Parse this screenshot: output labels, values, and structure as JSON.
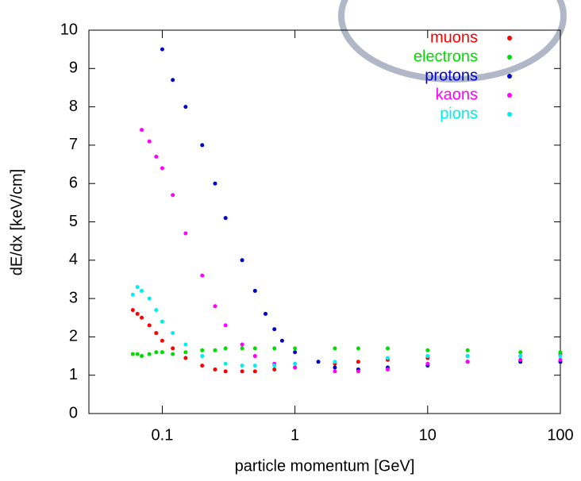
{
  "chart_data": {
    "type": "scatter",
    "xlabel": "particle momentum [GeV]",
    "ylabel": "dE/dx [keV/cm]",
    "log_x": true,
    "xlim": [
      0.028,
      100
    ],
    "xticks": [
      0.1,
      1,
      10,
      100
    ],
    "ylim": [
      0,
      10
    ],
    "yticks": [
      0,
      1,
      2,
      3,
      4,
      5,
      6,
      7,
      8,
      9,
      10
    ],
    "legend": "upper right",
    "series": [
      {
        "name": "muons",
        "color": "#ff0000",
        "x": [
          0.06,
          0.065,
          0.07,
          0.08,
          0.09,
          0.1,
          0.12,
          0.15,
          0.2,
          0.25,
          0.3,
          0.4,
          0.5,
          0.7,
          1,
          2,
          3,
          5,
          10,
          20,
          50,
          100
        ],
        "values": [
          2.7,
          2.6,
          2.5,
          2.3,
          2.1,
          1.9,
          1.7,
          1.45,
          1.25,
          1.15,
          1.1,
          1.1,
          1.1,
          1.15,
          1.2,
          1.3,
          1.35,
          1.4,
          1.45,
          1.5,
          1.5,
          1.55
        ]
      },
      {
        "name": "electrons",
        "color": "#00dd00",
        "x": [
          0.06,
          0.065,
          0.07,
          0.08,
          0.09,
          0.1,
          0.12,
          0.15,
          0.2,
          0.25,
          0.3,
          0.4,
          0.5,
          0.7,
          1,
          2,
          3,
          5,
          10,
          20,
          50,
          100
        ],
        "values": [
          1.55,
          1.55,
          1.5,
          1.55,
          1.6,
          1.6,
          1.55,
          1.6,
          1.65,
          1.65,
          1.7,
          1.7,
          1.7,
          1.7,
          1.7,
          1.7,
          1.7,
          1.7,
          1.65,
          1.65,
          1.6,
          1.6
        ]
      },
      {
        "name": "protons",
        "color": "#0000cc",
        "x": [
          0.1,
          0.12,
          0.15,
          0.2,
          0.25,
          0.3,
          0.4,
          0.5,
          0.6,
          0.7,
          0.8,
          1,
          1.5,
          2,
          3,
          5,
          10,
          20,
          50,
          100
        ],
        "values": [
          9.5,
          8.7,
          8.0,
          7.0,
          6.0,
          5.1,
          4.0,
          3.2,
          2.6,
          2.2,
          1.9,
          1.6,
          1.35,
          1.2,
          1.15,
          1.2,
          1.25,
          1.35,
          1.35,
          1.35
        ]
      },
      {
        "name": "kaons",
        "color": "#ff00ff",
        "x": [
          0.07,
          0.08,
          0.09,
          0.1,
          0.12,
          0.15,
          0.2,
          0.25,
          0.3,
          0.4,
          0.5,
          0.7,
          1,
          2,
          3,
          5,
          10,
          20,
          50,
          100
        ],
        "values": [
          7.4,
          7.1,
          6.7,
          6.4,
          5.7,
          4.7,
          3.6,
          2.8,
          2.3,
          1.8,
          1.5,
          1.3,
          1.2,
          1.1,
          1.1,
          1.15,
          1.3,
          1.35,
          1.4,
          1.4
        ]
      },
      {
        "name": "pions",
        "color": "#00eeee",
        "x": [
          0.06,
          0.065,
          0.07,
          0.08,
          0.09,
          0.1,
          0.12,
          0.15,
          0.2,
          0.3,
          0.4,
          0.5,
          0.7,
          1,
          2,
          5,
          10,
          20,
          50,
          100
        ],
        "values": [
          3.1,
          3.3,
          3.2,
          3.0,
          2.7,
          2.4,
          2.1,
          1.8,
          1.5,
          1.3,
          1.25,
          1.25,
          1.25,
          1.3,
          1.35,
          1.45,
          1.5,
          1.5,
          1.5,
          1.5
        ]
      }
    ]
  }
}
